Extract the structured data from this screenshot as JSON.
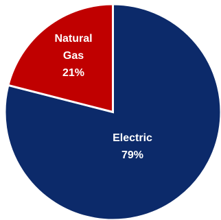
{
  "chart_data": {
    "type": "pie",
    "slices": [
      {
        "label_lines": [
          "Electric",
          "79%"
        ],
        "value": 79,
        "color": "#0c2a6a"
      },
      {
        "label_lines": [
          "Natural",
          "Gas",
          "21%"
        ],
        "value": 21,
        "color": "#c00000"
      }
    ]
  }
}
